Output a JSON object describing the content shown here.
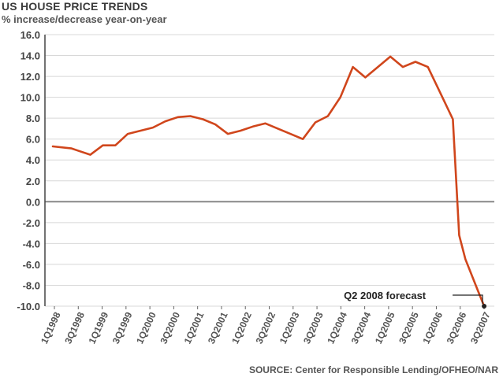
{
  "chart_data": {
    "type": "line",
    "title": "US HOUSE PRICE TRENDS",
    "subtitle": "% increase/decrease year-on-year",
    "source": "SOURCE: Center for Responsible Lending/OFHEO/NAR",
    "ylim": [
      -10,
      16
    ],
    "y_ticks": [
      "16.0",
      "14.0",
      "12.0",
      "10.0",
      "8.0",
      "6.0",
      "4.0",
      "2.0",
      "0.0",
      "-2.0",
      "-4.0",
      "-6.0",
      "-8.0",
      "-10.0"
    ],
    "x_tick_labels": [
      "1Q1998",
      "3Q1998",
      "1Q1999",
      "3Q1999",
      "1Q2000",
      "3Q2000",
      "1Q2001",
      "3Q2001",
      "1Q2002",
      "3Q2002",
      "1Q2003",
      "3Q2003",
      "1Q2004",
      "3Q2004",
      "1Q2005",
      "3Q2005",
      "1Q2006",
      "3Q2006",
      "3Q2007"
    ],
    "grid": true,
    "line_color": "#d0461c",
    "points": [
      {
        "x": 0,
        "y": 5.3
      },
      {
        "x": 1.5,
        "y": 5.1
      },
      {
        "x": 2,
        "y": 4.9
      },
      {
        "x": 3,
        "y": 4.5
      },
      {
        "x": 4,
        "y": 5.4
      },
      {
        "x": 5,
        "y": 5.4
      },
      {
        "x": 6,
        "y": 6.5
      },
      {
        "x": 7,
        "y": 6.8
      },
      {
        "x": 8,
        "y": 7.1
      },
      {
        "x": 9,
        "y": 7.7
      },
      {
        "x": 10,
        "y": 8.1
      },
      {
        "x": 11,
        "y": 8.2
      },
      {
        "x": 12,
        "y": 7.9
      },
      {
        "x": 13,
        "y": 7.4
      },
      {
        "x": 14,
        "y": 6.5
      },
      {
        "x": 15,
        "y": 6.8
      },
      {
        "x": 16,
        "y": 7.2
      },
      {
        "x": 17,
        "y": 7.5
      },
      {
        "x": 18,
        "y": 7.0
      },
      {
        "x": 19,
        "y": 6.5
      },
      {
        "x": 20,
        "y": 6.0
      },
      {
        "x": 21,
        "y": 7.6
      },
      {
        "x": 22,
        "y": 8.2
      },
      {
        "x": 23,
        "y": 10.0
      },
      {
        "x": 24,
        "y": 12.9
      },
      {
        "x": 25,
        "y": 11.9
      },
      {
        "x": 26,
        "y": 12.9
      },
      {
        "x": 27,
        "y": 13.9
      },
      {
        "x": 28,
        "y": 12.9
      },
      {
        "x": 29,
        "y": 13.4
      },
      {
        "x": 30,
        "y": 12.9
      },
      {
        "x": 31,
        "y": 10.4
      },
      {
        "x": 32,
        "y": 7.9
      },
      {
        "x": 32.5,
        "y": -3.2
      },
      {
        "x": 33,
        "y": -5.5
      },
      {
        "x": 34,
        "y": -8.5
      },
      {
        "x": 34.5,
        "y": -10.0
      }
    ],
    "annotation": {
      "text": "Q2 2008 forecast",
      "x": 34.5,
      "y": -10.0
    }
  }
}
